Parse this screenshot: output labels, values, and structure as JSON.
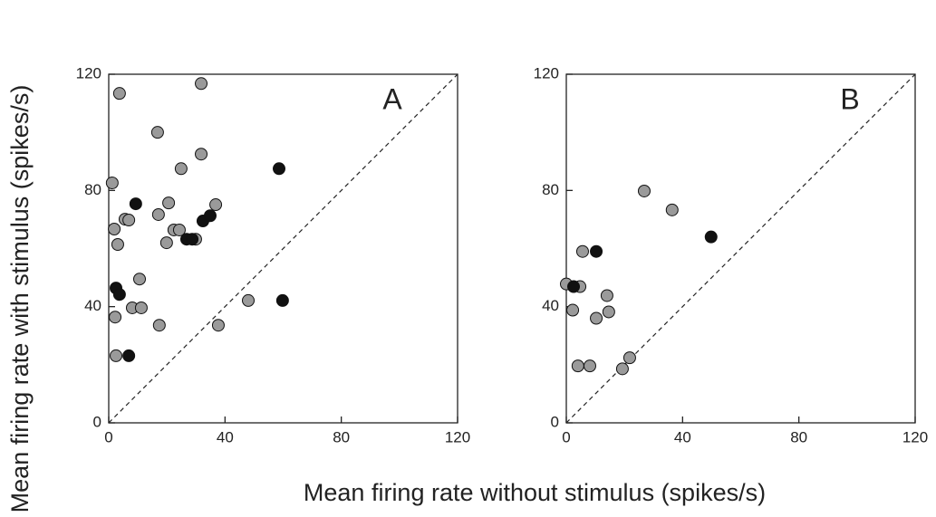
{
  "chart_data": [
    {
      "type": "scatter",
      "annotation": "A",
      "xlim": [
        0,
        120
      ],
      "ylim": [
        0,
        120
      ],
      "xticks": [
        0,
        40,
        80,
        120
      ],
      "yticks": [
        0,
        40,
        80,
        120
      ],
      "series": [
        {
          "color": "#9a9a9a",
          "x": [
            1.2,
            1.9,
            3.7,
            3.1,
            5.6,
            6.9,
            2.2,
            2.5,
            8.1,
            10.6,
            11.2,
            17.1,
            17.4,
            16.8,
            19.9,
            20.6,
            22.4,
            24.3,
            24.9,
            31.8,
            31.8,
            29.9,
            36.8,
            37.7,
            48
          ],
          "values": [
            82.6,
            66.7,
            113.4,
            61.4,
            70.1,
            69.8,
            36.4,
            23.1,
            39.6,
            49.5,
            39.6,
            71.7,
            33.6,
            100,
            62,
            75.7,
            66.4,
            66.4,
            87.5,
            116.8,
            92.5,
            63.2,
            75.1,
            33.6,
            42.1
          ]
        },
        {
          "color": "#111111",
          "x": [
            2.5,
            3.7,
            6.9,
            9.3,
            26.8,
            28.7,
            32.4,
            34.9,
            58.6,
            59.8
          ],
          "values": [
            46.4,
            44.2,
            23.1,
            75.4,
            63.2,
            63.2,
            69.5,
            71.3,
            87.5,
            42.1
          ]
        }
      ]
    },
    {
      "type": "scatter",
      "annotation": "B",
      "xlim": [
        0,
        120
      ],
      "ylim": [
        0,
        120
      ],
      "xticks": [
        0,
        40,
        80,
        120
      ],
      "yticks": [
        0,
        40,
        80,
        120
      ],
      "series": [
        {
          "color": "#9a9a9a",
          "x": [
            0,
            2.2,
            4.7,
            5.6,
            4,
            8.1,
            14,
            14.6,
            10.3,
            19.3,
            21.8,
            26.8,
            36.4
          ],
          "values": [
            47.8,
            38.8,
            46.9,
            59,
            19.6,
            19.6,
            43.8,
            38.2,
            36,
            18.6,
            22.4,
            79.8,
            73.3
          ]
        },
        {
          "color": "#111111",
          "x": [
            2.5,
            10.3,
            49.8
          ],
          "values": [
            46.9,
            59,
            64
          ]
        }
      ]
    }
  ],
  "x_label": "Mean firing rate without stimulus (spikes/s)",
  "y_label": "Mean firing rate with stimulus (spikes/s)"
}
